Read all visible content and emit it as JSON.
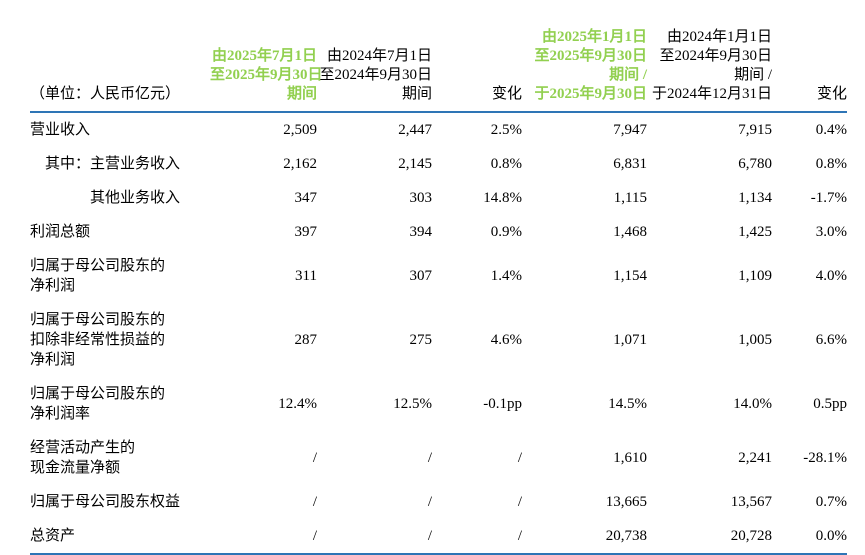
{
  "table": {
    "unit_label": "（单位：人民币亿元）",
    "colors": {
      "highlight_green": "#92D050",
      "rule_blue": "#2E75B6",
      "text_black": "#000000"
    },
    "columns": [
      {
        "id": "q3-2025",
        "lines": [
          "由2025年7月1日",
          "至2025年9月30日",
          "期间"
        ],
        "highlight": true
      },
      {
        "id": "q3-2024",
        "lines": [
          "由2024年7月1日",
          "至2024年9月30日",
          "期间"
        ],
        "highlight": false
      },
      {
        "id": "change-quarter",
        "lines": [
          "变化"
        ],
        "highlight": false
      },
      {
        "id": "ytd-2025",
        "lines": [
          "由2025年1月1日",
          "至2025年9月30日",
          "期间 /",
          "于2025年9月30日"
        ],
        "highlight": true
      },
      {
        "id": "ytd-2024",
        "lines": [
          "由2024年1月1日",
          "至2024年9月30日",
          "期间 /",
          "于2024年12月31日"
        ],
        "highlight": false
      },
      {
        "id": "change-ytd",
        "lines": [
          "变化"
        ],
        "highlight": false
      }
    ],
    "rows": [
      {
        "label_lines": [
          "营业收入"
        ],
        "indent": 0,
        "values": [
          "2,509",
          "2,447",
          "2.5%",
          "7,947",
          "7,915",
          "0.4%"
        ]
      },
      {
        "label_lines": [
          "其中：主营业务收入"
        ],
        "indent": 1,
        "values": [
          "2,162",
          "2,145",
          "0.8%",
          "6,831",
          "6,780",
          "0.8%"
        ]
      },
      {
        "label_lines": [
          "其他业务收入"
        ],
        "indent": 2,
        "values": [
          "347",
          "303",
          "14.8%",
          "1,115",
          "1,134",
          "-1.7%"
        ]
      },
      {
        "label_lines": [
          "利润总额"
        ],
        "indent": 0,
        "values": [
          "397",
          "394",
          "0.9%",
          "1,468",
          "1,425",
          "3.0%"
        ]
      },
      {
        "label_lines": [
          "归属于母公司股东的",
          "净利润"
        ],
        "indent": 0,
        "values": [
          "311",
          "307",
          "1.4%",
          "1,154",
          "1,109",
          "4.0%"
        ]
      },
      {
        "label_lines": [
          "归属于母公司股东的",
          "扣除非经常性损益的",
          "净利润"
        ],
        "indent": 0,
        "values": [
          "287",
          "275",
          "4.6%",
          "1,071",
          "1,005",
          "6.6%"
        ]
      },
      {
        "label_lines": [
          "归属于母公司股东的",
          "净利润率"
        ],
        "indent": 0,
        "values": [
          "12.4%",
          "12.5%",
          "-0.1pp",
          "14.5%",
          "14.0%",
          "0.5pp"
        ]
      },
      {
        "label_lines": [
          "经营活动产生的",
          "现金流量净额"
        ],
        "indent": 0,
        "values": [
          "/",
          "/",
          "/",
          "1,610",
          "2,241",
          "-28.1%"
        ]
      },
      {
        "label_lines": [
          "归属于母公司股东权益"
        ],
        "indent": 0,
        "values": [
          "/",
          "/",
          "/",
          "13,665",
          "13,567",
          "0.7%"
        ]
      },
      {
        "label_lines": [
          "总资产"
        ],
        "indent": 0,
        "values": [
          "/",
          "/",
          "/",
          "20,738",
          "20,728",
          "0.0%"
        ]
      }
    ]
  }
}
